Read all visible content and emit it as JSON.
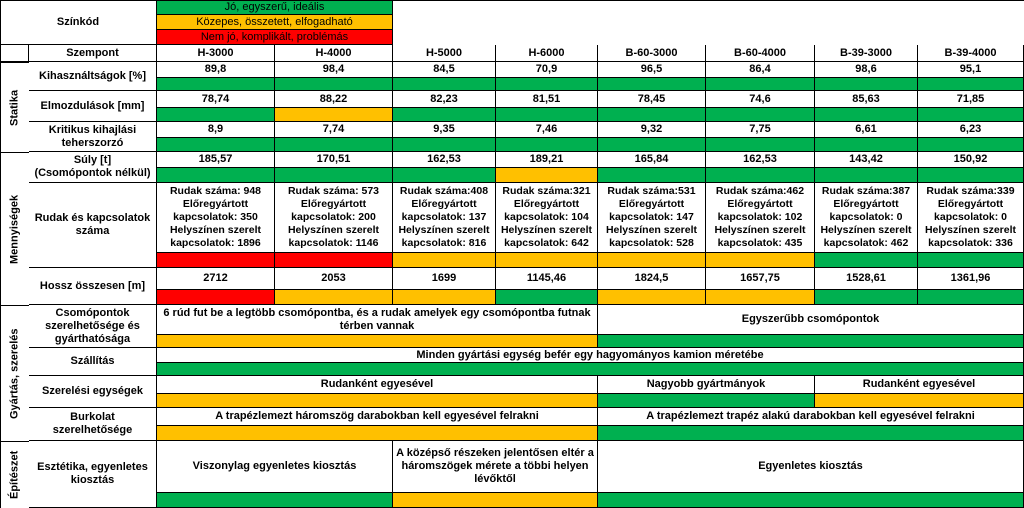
{
  "legend": {
    "title": "Színkód",
    "good": "Jó, egyszerű, ideális",
    "medium": "Közepes, összetett, elfogadható",
    "bad": "Nem jó, komplikált, problémás"
  },
  "colors": {
    "good": "#00b050",
    "medium": "#ffc000",
    "bad": "#ff0000"
  },
  "header": {
    "criterion": "Szempont",
    "columns": [
      "H-3000",
      "H-4000",
      "H-5000",
      "H-6000",
      "B-60-3000",
      "B-60-4000",
      "B-39-3000",
      "B-39-4000"
    ]
  },
  "groups": {
    "statika": "Statika",
    "mennyisegek": "Mennyiségek",
    "gyartas": "Gyártás, szerelés",
    "epiteszet": "Építészet"
  },
  "rows": {
    "utilization": {
      "label": "Kihasználtságok [%]",
      "values": [
        "89,8",
        "98,4",
        "84,5",
        "70,9",
        "96,5",
        "86,4",
        "98,6",
        "95,1"
      ],
      "ratings": [
        "good",
        "good",
        "good",
        "good",
        "good",
        "good",
        "good",
        "good"
      ]
    },
    "displacement": {
      "label": "Elmozdulások [mm]",
      "values": [
        "78,74",
        "88,22",
        "82,23",
        "81,51",
        "78,45",
        "74,6",
        "85,63",
        "71,85"
      ],
      "ratings": [
        "good",
        "medium",
        "good",
        "good",
        "good",
        "good",
        "good",
        "good"
      ]
    },
    "buckling": {
      "label": "Kritikus kihajlási\nteherszorzó",
      "values": [
        "8,9",
        "7,74",
        "9,35",
        "7,46",
        "9,32",
        "7,75",
        "6,61",
        "6,23"
      ],
      "ratings": [
        "good",
        "good",
        "good",
        "good",
        "good",
        "good",
        "good",
        "good"
      ]
    },
    "weight": {
      "label": "Súly [t]\n(Csomópontok nélkül)",
      "values": [
        "185,57",
        "170,51",
        "162,53",
        "189,21",
        "165,84",
        "162,53",
        "143,42",
        "150,92"
      ],
      "ratings": [
        "good",
        "good",
        "good",
        "medium",
        "good",
        "good",
        "good",
        "good"
      ]
    },
    "members": {
      "label": "Rudak és kapcsolatok\nszáma",
      "values": [
        "Rudak száma: 948\nElőregyártott\nkapcsolatok: 350\nHelyszínen szerelt\nkapcsolatok: 1896",
        "Rudak száma: 573\nElőregyártott\nkapcsolatok: 200\nHelyszínen szerelt\nkapcsolatok: 1146",
        "Rudak száma:408\nElőregyártott\nkapcsolatok: 137\nHelyszínen szerelt\nkapcsolatok: 816",
        "Rudak száma:321\nElőregyártott\nkapcsolatok: 104\nHelyszínen szerelt\nkapcsolatok: 642",
        "Rudak száma:531\nElőregyártott\nkapcsolatok: 147\nHelyszínen szerelt\nkapcsolatok: 528",
        "Rudak száma:462\nElőregyártott\nkapcsolatok: 102\nHelyszínen szerelt\nkapcsolatok: 435",
        "Rudak száma:387\nElőregyártott\nkapcsolatok: 0\nHelyszínen szerelt\nkapcsolatok: 462",
        "Rudak száma:339\nElőregyártott\nkapcsolatok: 0\nHelyszínen szerelt\nkapcsolatok: 336"
      ],
      "ratings": [
        "bad",
        "red-medium",
        "medium",
        "medium",
        "medium",
        "medium",
        "good",
        "good"
      ]
    },
    "length": {
      "label": "Hossz összesen [m]",
      "values": [
        "2712",
        "2053",
        "1699",
        "1145,46",
        "1824,5",
        "1657,75",
        "1528,61",
        "1361,96"
      ],
      "ratings": [
        "bad",
        "medium",
        "medium",
        "good",
        "medium",
        "medium",
        "good",
        "good"
      ]
    },
    "nodes": {
      "label": "Csomópontok\nszerelhetősége és\ngyárthatósága",
      "text_h": "6 rúd fut be a legtöbb csomópontba, és a rudak amelyek egy csomópontba futnak\ntérben vannak",
      "text_b": "Egyszerűbb csomópontok"
    },
    "transport": {
      "label": "Szállítás",
      "text": "Minden gyártási egység befér egy hagyományos kamion méretébe"
    },
    "assembly": {
      "label": "Szerelési egységek",
      "text_h": "Rudanként egyesével",
      "text_b60": "Nagyobb gyártmányok",
      "text_b39": "Rudanként egyesével"
    },
    "cladding": {
      "label": "Burkolat\nszerelhetősége",
      "text_h": "A trapézlemezt háromszög darabokban kell egyesével felrakni",
      "text_b": "A trapézlemezt trapéz alakú darabokban kell egyesével felrakni"
    },
    "aesthetics": {
      "label": "Esztétika, egyenletes\nkiosztás",
      "text_h34": "Viszonylag egyenletes kiosztás",
      "text_h5": "A középső részeken jelentősen eltér a\nháromszögek mérete a többi helyen\nlévőktől",
      "text_rest": "Egyenletes kiosztás"
    }
  }
}
